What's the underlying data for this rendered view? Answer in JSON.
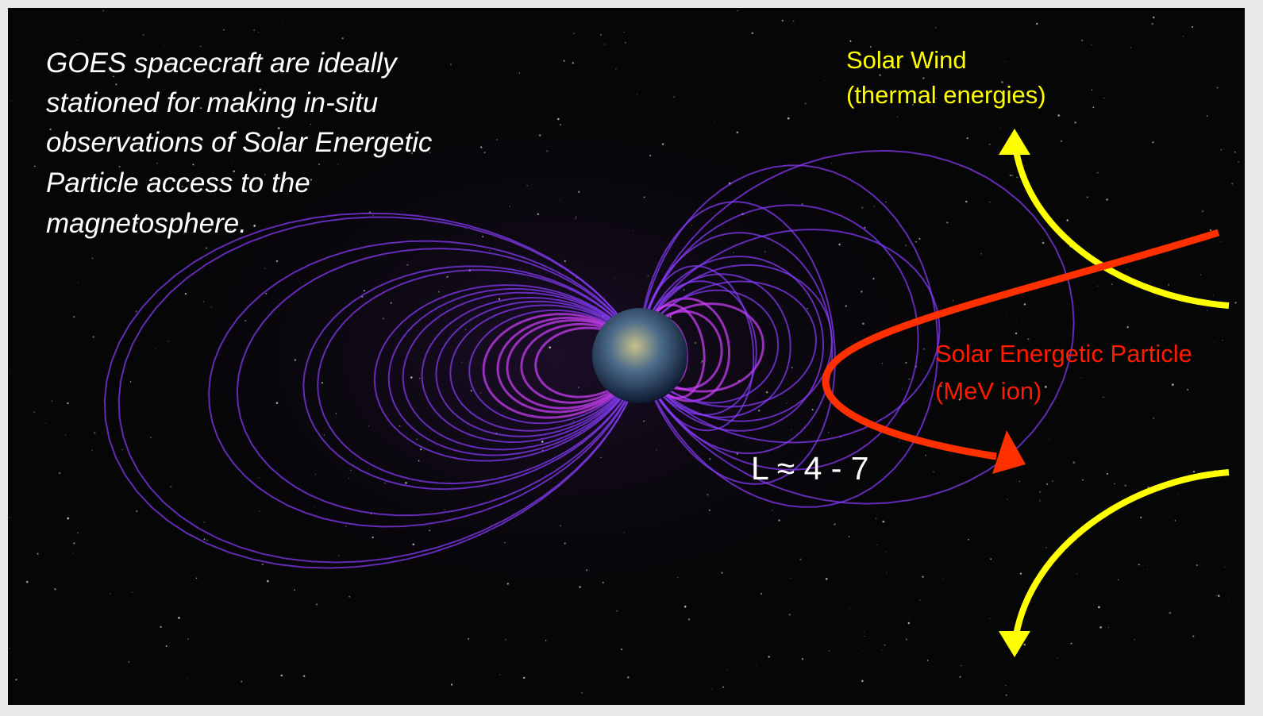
{
  "caption": [
    "GOES spacecraft are ideally",
    "stationed for making in-situ",
    "observations of Solar Energetic",
    "Particle access to the",
    "magnetosphere."
  ],
  "solar_wind_label": [
    "Solar Wind",
    "(thermal energies)"
  ],
  "sep_label": [
    "Solar Energetic Particle",
    "(MeV ion)"
  ],
  "l_shell_label": "L ≈ 4 - 7"
}
